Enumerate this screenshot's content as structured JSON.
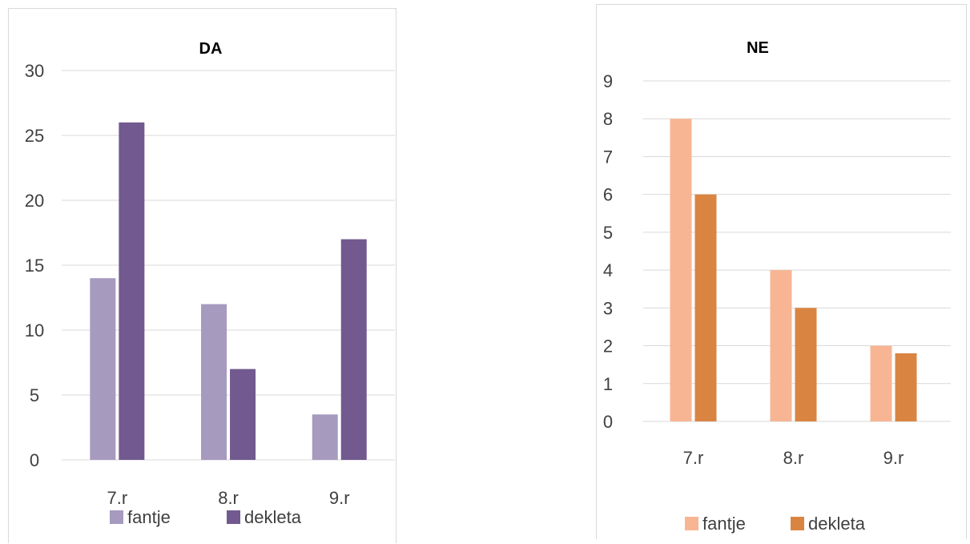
{
  "chart_data": [
    {
      "type": "bar",
      "title": "DA",
      "categories": [
        "7.r",
        "8.r",
        "9.r"
      ],
      "series": [
        {
          "name": "fantje",
          "values": [
            14,
            12,
            3.5
          ]
        },
        {
          "name": "dekleta",
          "values": [
            26,
            7,
            17
          ]
        }
      ],
      "ylim": [
        0,
        30
      ],
      "yticks": [
        0,
        5,
        10,
        15,
        20,
        25,
        30
      ],
      "grid": true,
      "legend": "bottom",
      "colors": [
        "#a69abf",
        "#72598f"
      ]
    },
    {
      "type": "bar",
      "title": "NE",
      "categories": [
        "7.r",
        "8.r",
        "9.r"
      ],
      "series": [
        {
          "name": "fantje",
          "values": [
            8,
            4,
            2
          ]
        },
        {
          "name": "dekleta",
          "values": [
            6,
            3,
            1.8
          ]
        }
      ],
      "ylim": [
        0,
        9
      ],
      "yticks": [
        0,
        1,
        2,
        3,
        4,
        5,
        6,
        7,
        8,
        9
      ],
      "grid": true,
      "legend": "bottom",
      "colors": [
        "#f8b593",
        "#da8442"
      ]
    }
  ]
}
